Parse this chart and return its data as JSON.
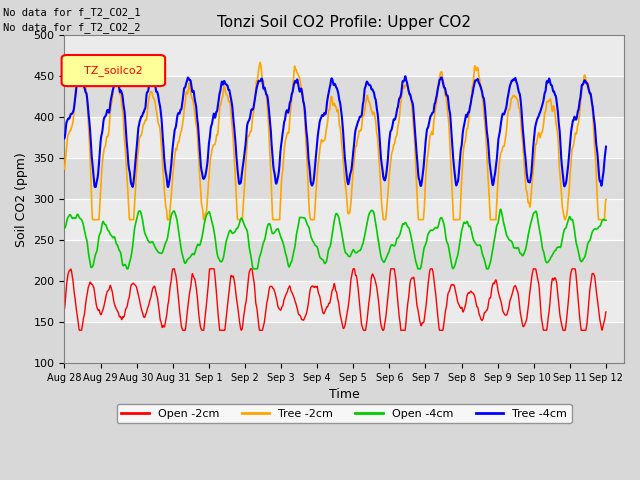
{
  "title": "Tonzi Soil CO2 Profile: Upper CO2",
  "xlabel": "Time",
  "ylabel": "Soil CO2 (ppm)",
  "ylim": [
    100,
    500
  ],
  "annotation_lines": [
    "No data for f_T2_CO2_1",
    "No data for f_T2_CO2_2"
  ],
  "legend_label": "TZ_soilco2",
  "legend_entries": [
    "Open -2cm",
    "Tree -2cm",
    "Open -4cm",
    "Tree -4cm"
  ],
  "legend_colors": [
    "#ff0000",
    "#ffa500",
    "#00cc00",
    "#0000ff"
  ],
  "bg_color": "#e8e8e8",
  "grid_color": "#ffffff",
  "tick_labels": [
    "Aug 28",
    "Aug 29",
    "Aug 30",
    "Aug 31",
    "Sep 1",
    "Sep 2",
    "Sep 3",
    "Sep 4",
    "Sep 5",
    "Sep 6",
    "Sep 7",
    "Sep 8",
    "Sep 9",
    "Sep 10",
    "Sep 11",
    "Sep 12"
  ],
  "fig_width": 6.4,
  "fig_height": 4.8,
  "dpi": 100
}
